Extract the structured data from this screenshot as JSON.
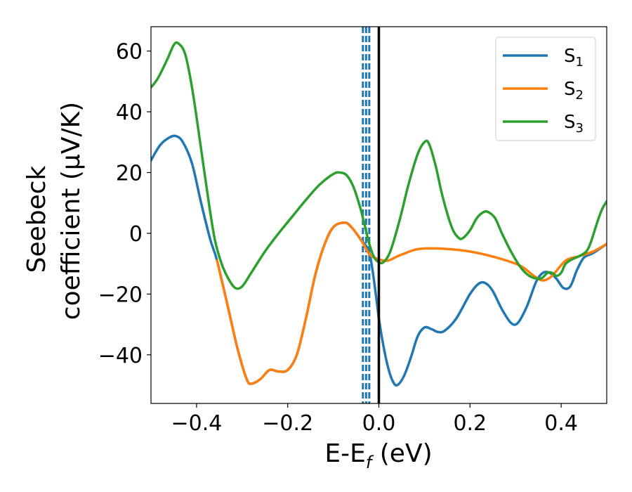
{
  "chart_data": {
    "type": "line",
    "title": "",
    "xlabel": "E-E",
    "xlabel_sub": "f",
    "xlabel_unit": " (eV)",
    "ylabel_line1": "Seebeck",
    "ylabel_line2": "coefficient  (μV/K)",
    "xlim": [
      -0.5,
      0.5
    ],
    "ylim": [
      -56,
      68
    ],
    "xticks": [
      -0.4,
      -0.2,
      0.0,
      0.2,
      0.4
    ],
    "xtick_labels": [
      "−0.4",
      "−0.2",
      "0.0",
      "0.2",
      "0.4"
    ],
    "yticks": [
      -40,
      -20,
      0,
      20,
      40,
      60
    ],
    "ytick_labels": [
      "−40",
      "−20",
      "0",
      "20",
      "40",
      "60"
    ],
    "legend_position": "top-right",
    "fermi_level": {
      "x": 0.0,
      "color": "#000000",
      "style": "solid"
    },
    "vertical_markers": {
      "x": [
        -0.035,
        -0.028,
        -0.021
      ],
      "color": "#1f77b4",
      "style": "dashed"
    },
    "series": [
      {
        "name": "S",
        "sub": "1",
        "color": "#1f77b4",
        "points": [
          [
            -0.5,
            24
          ],
          [
            -0.48,
            29
          ],
          [
            -0.46,
            31.5
          ],
          [
            -0.445,
            32
          ],
          [
            -0.43,
            30
          ],
          [
            -0.41,
            23
          ],
          [
            -0.39,
            10
          ],
          [
            -0.37,
            -2
          ],
          [
            -0.355,
            -9
          ],
          [
            -0.33,
            -25
          ],
          [
            -0.31,
            -38
          ],
          [
            -0.29,
            -48
          ],
          [
            -0.28,
            -49.5
          ],
          [
            -0.26,
            -48
          ],
          [
            -0.24,
            -45
          ],
          [
            -0.22,
            -45.5
          ],
          [
            -0.2,
            -45
          ],
          [
            -0.18,
            -40
          ],
          [
            -0.16,
            -28
          ],
          [
            -0.14,
            -14
          ],
          [
            -0.12,
            -4
          ],
          [
            -0.1,
            2
          ],
          [
            -0.075,
            3.5
          ],
          [
            -0.06,
            2
          ],
          [
            -0.04,
            -2
          ],
          [
            -0.02,
            -7
          ],
          [
            -0.005,
            -22
          ],
          [
            0.0,
            -28
          ],
          [
            0.01,
            -37
          ],
          [
            0.02,
            -44
          ],
          [
            0.03,
            -48.5
          ],
          [
            0.04,
            -50
          ],
          [
            0.055,
            -47
          ],
          [
            0.07,
            -41
          ],
          [
            0.085,
            -34
          ],
          [
            0.1,
            -31
          ],
          [
            0.115,
            -31.5
          ],
          [
            0.13,
            -32.5
          ],
          [
            0.145,
            -32
          ],
          [
            0.17,
            -28
          ],
          [
            0.2,
            -20
          ],
          [
            0.22,
            -16.5
          ],
          [
            0.235,
            -16.5
          ],
          [
            0.25,
            -19
          ],
          [
            0.27,
            -25
          ],
          [
            0.29,
            -29.5
          ],
          [
            0.305,
            -29.5
          ],
          [
            0.325,
            -24
          ],
          [
            0.345,
            -16
          ],
          [
            0.36,
            -13
          ],
          [
            0.375,
            -13
          ],
          [
            0.39,
            -15
          ],
          [
            0.405,
            -18
          ],
          [
            0.42,
            -17.5
          ],
          [
            0.435,
            -12
          ],
          [
            0.45,
            -8
          ],
          [
            0.47,
            -6.5
          ],
          [
            0.5,
            -3.5
          ]
        ]
      },
      {
        "name": "S",
        "sub": "2",
        "color": "#ff7f0e",
        "points": [
          [
            -0.355,
            -9
          ],
          [
            -0.33,
            -25
          ],
          [
            -0.31,
            -38
          ],
          [
            -0.29,
            -48
          ],
          [
            -0.28,
            -49.5
          ],
          [
            -0.26,
            -48
          ],
          [
            -0.24,
            -45
          ],
          [
            -0.22,
            -45.5
          ],
          [
            -0.2,
            -45
          ],
          [
            -0.18,
            -40
          ],
          [
            -0.16,
            -28
          ],
          [
            -0.14,
            -14
          ],
          [
            -0.12,
            -4
          ],
          [
            -0.1,
            2
          ],
          [
            -0.075,
            3.5
          ],
          [
            -0.06,
            2
          ],
          [
            -0.04,
            -2
          ],
          [
            -0.02,
            -7
          ],
          [
            0.0,
            -8.5
          ],
          [
            0.02,
            -9
          ],
          [
            0.05,
            -7
          ],
          [
            0.1,
            -5
          ],
          [
            0.2,
            -6
          ],
          [
            0.3,
            -10
          ],
          [
            0.34,
            -14
          ],
          [
            0.36,
            -15.5
          ],
          [
            0.38,
            -14
          ],
          [
            0.41,
            -9
          ],
          [
            0.44,
            -7.5
          ],
          [
            0.47,
            -6
          ],
          [
            0.5,
            -3.5
          ]
        ]
      },
      {
        "name": "S",
        "sub": "3",
        "color": "#2ca02c",
        "points": [
          [
            -0.5,
            48
          ],
          [
            -0.485,
            51
          ],
          [
            -0.465,
            57
          ],
          [
            -0.45,
            62
          ],
          [
            -0.44,
            62.5
          ],
          [
            -0.425,
            59
          ],
          [
            -0.41,
            48
          ],
          [
            -0.395,
            33
          ],
          [
            -0.375,
            12
          ],
          [
            -0.36,
            -2
          ],
          [
            -0.345,
            -10
          ],
          [
            -0.33,
            -15
          ],
          [
            -0.315,
            -18
          ],
          [
            -0.3,
            -17.5
          ],
          [
            -0.28,
            -13
          ],
          [
            -0.25,
            -6
          ],
          [
            -0.22,
            0
          ],
          [
            -0.19,
            5.5
          ],
          [
            -0.16,
            11
          ],
          [
            -0.13,
            16
          ],
          [
            -0.1,
            19.5
          ],
          [
            -0.085,
            20
          ],
          [
            -0.07,
            19
          ],
          [
            -0.055,
            15
          ],
          [
            -0.04,
            8
          ],
          [
            -0.03,
            2
          ],
          [
            -0.02,
            -4
          ],
          [
            -0.01,
            -8
          ],
          [
            0.0,
            -9.5
          ],
          [
            0.01,
            -9.5
          ],
          [
            0.025,
            -6
          ],
          [
            0.045,
            4
          ],
          [
            0.065,
            16
          ],
          [
            0.085,
            26
          ],
          [
            0.1,
            30
          ],
          [
            0.11,
            29.5
          ],
          [
            0.125,
            22
          ],
          [
            0.14,
            12
          ],
          [
            0.16,
            2
          ],
          [
            0.175,
            -1.5
          ],
          [
            0.185,
            -1.5
          ],
          [
            0.2,
            1
          ],
          [
            0.215,
            5
          ],
          [
            0.23,
            7
          ],
          [
            0.24,
            7
          ],
          [
            0.255,
            5
          ],
          [
            0.27,
            0
          ],
          [
            0.29,
            -6
          ],
          [
            0.31,
            -11
          ],
          [
            0.33,
            -14
          ],
          [
            0.35,
            -15
          ],
          [
            0.36,
            -14.5
          ],
          [
            0.37,
            -13
          ],
          [
            0.38,
            -13
          ],
          [
            0.39,
            -14
          ],
          [
            0.4,
            -13
          ],
          [
            0.41,
            -10
          ],
          [
            0.425,
            -8.5
          ],
          [
            0.44,
            -7.5
          ],
          [
            0.455,
            -6
          ],
          [
            0.465,
            -3
          ],
          [
            0.48,
            4
          ],
          [
            0.49,
            8
          ],
          [
            0.5,
            10.5
          ]
        ]
      }
    ]
  }
}
